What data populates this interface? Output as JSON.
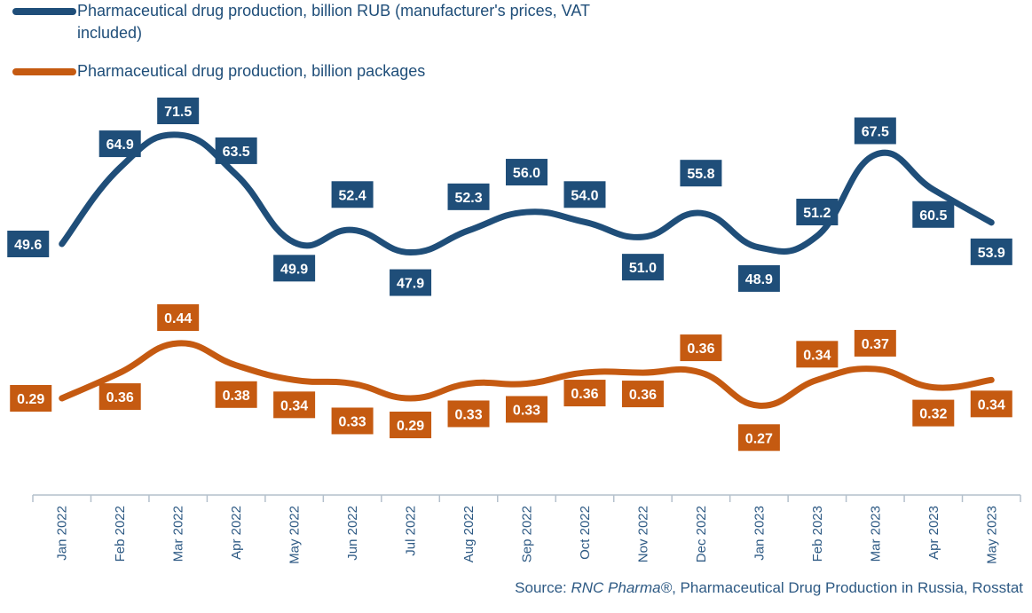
{
  "colors": {
    "rub": "#1f4e79",
    "packages": "#c55a11",
    "axis": "#b4c0cc",
    "text": "#2e5a84"
  },
  "source": {
    "prefix": "Source: ",
    "brand": "RNC Pharma®",
    "rest": ", Pharmaceutical Drug Production in Russia, Rosstat"
  },
  "chart_data": {
    "type": "line",
    "categories": [
      "Jan 2022",
      "Feb 2022",
      "Mar 2022",
      "Apr 2022",
      "May 2022",
      "Jun 2022",
      "Jul 2022",
      "Aug 2022",
      "Sep 2022",
      "Oct 2022",
      "Nov 2022",
      "Dec 2022",
      "Jan 2023",
      "Feb 2023",
      "Mar 2023",
      "Apr 2023",
      "May 2023"
    ],
    "series": [
      {
        "name": "Pharmaceutical drug production, billion RUB (manufacturer's prices, VAT included)",
        "values": [
          49.6,
          64.9,
          71.5,
          63.5,
          49.9,
          52.4,
          47.9,
          52.3,
          56.0,
          54.0,
          51.0,
          55.8,
          48.9,
          51.2,
          67.5,
          60.5,
          53.9
        ],
        "labels": [
          "49.6",
          "64.9",
          "71.5",
          "63.5",
          "49.9",
          "52.4",
          "47.9",
          "52.3",
          "56.0",
          "54.0",
          "51.0",
          "55.8",
          "48.9",
          "51.2",
          "67.5",
          "60.5",
          "53.9"
        ]
      },
      {
        "name": "Pharmaceutical drug production, billion packages",
        "values": [
          0.29,
          0.36,
          0.44,
          0.38,
          0.34,
          0.33,
          0.29,
          0.33,
          0.33,
          0.36,
          0.36,
          0.36,
          0.27,
          0.34,
          0.37,
          0.32,
          0.34
        ],
        "labels": [
          "0.29",
          "0.36",
          "0.44",
          "0.38",
          "0.34",
          "0.33",
          "0.29",
          "0.33",
          "0.33",
          "0.36",
          "0.36",
          "0.36",
          "0.27",
          "0.34",
          "0.37",
          "0.32",
          "0.34"
        ]
      }
    ],
    "legend": "top-left",
    "grid": false
  }
}
